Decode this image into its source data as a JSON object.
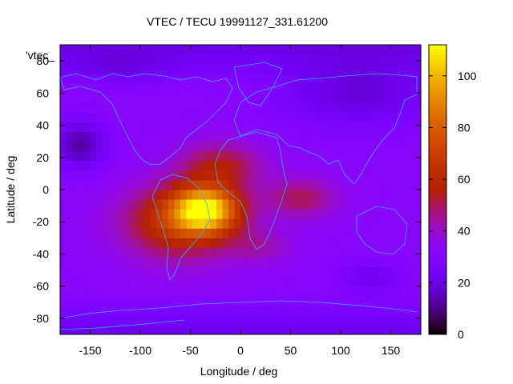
{
  "chart_data": {
    "type": "heatmap",
    "title": "VTEC / TECU 19991127_331.61200",
    "xlabel": "Longitude / deg",
    "ylabel": "Latitude / deg",
    "xlim": [
      -180,
      180
    ],
    "ylim": [
      -90,
      90
    ],
    "xticks": [
      -150,
      -100,
      -50,
      0,
      50,
      100,
      150
    ],
    "yticks": [
      80,
      60,
      40,
      20,
      0,
      -20,
      -40,
      -60,
      -80
    ],
    "colorbar": {
      "min": 0,
      "max": 112,
      "ticks": [
        0,
        20,
        40,
        60,
        80,
        100
      ]
    },
    "key_label": "'vtec_",
    "background_value": 32,
    "features": [
      {
        "lon": -35,
        "lat": -12,
        "sx": 32,
        "sy": 14,
        "amp": 65
      },
      {
        "lon": -60,
        "lat": -20,
        "sx": 55,
        "sy": 22,
        "amp": 35
      },
      {
        "lon": -20,
        "lat": 15,
        "sx": 40,
        "sy": 14,
        "amp": 22
      },
      {
        "lon": 60,
        "lat": -5,
        "sx": 35,
        "sy": 12,
        "amp": 18
      },
      {
        "lon": 20,
        "lat": -35,
        "sx": 30,
        "sy": 10,
        "amp": 10
      },
      {
        "lon": -160,
        "lat": 28,
        "sx": 25,
        "sy": 15,
        "amp": -20
      },
      {
        "lon": 120,
        "lat": 60,
        "sx": 80,
        "sy": 20,
        "amp": -14
      },
      {
        "lon": 130,
        "lat": -55,
        "sx": 30,
        "sy": 10,
        "amp": -10
      },
      {
        "lon": -120,
        "lat": 75,
        "sx": 60,
        "sy": 10,
        "amp": -8
      }
    ]
  }
}
